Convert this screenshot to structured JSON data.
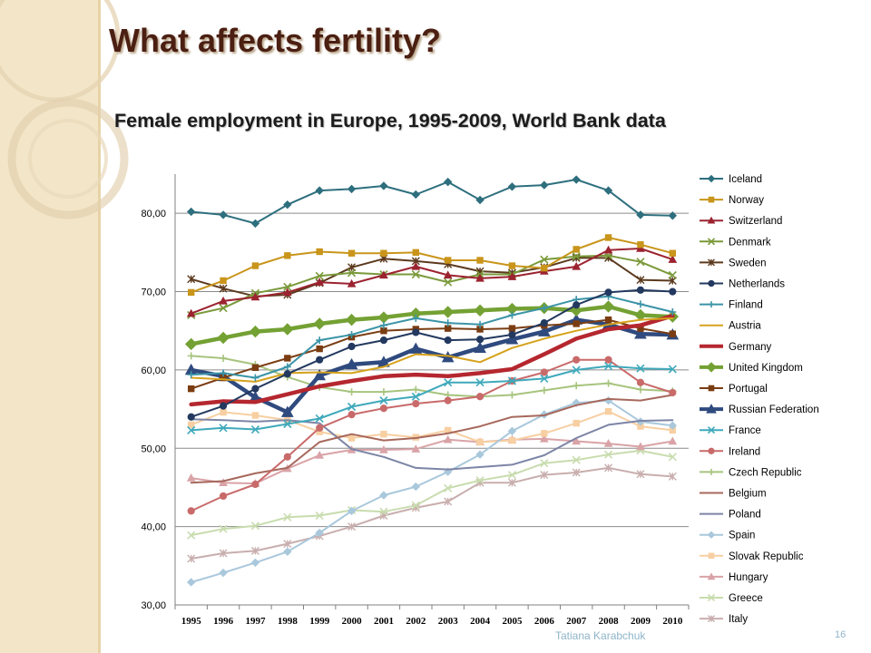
{
  "slide": {
    "title": "What affects fertility?",
    "author": "Tatiana Karabchuk",
    "page_number": "16"
  },
  "chart_data": {
    "type": "line",
    "title": "Female employment in Europe, 1995-2009, World Bank data",
    "xlabel": "",
    "ylabel": "",
    "ylim": [
      30,
      85
    ],
    "yticks": [
      "30,00",
      "40,00",
      "50,00",
      "60,00",
      "70,00",
      "80,00"
    ],
    "grid": true,
    "legend_position": "right",
    "x": [
      "1995",
      "1996",
      "1997",
      "1998",
      "1999",
      "2000",
      "2001",
      "2002",
      "2003",
      "2004",
      "2005",
      "2006",
      "2007",
      "2008",
      "2009",
      "2010"
    ],
    "series": [
      {
        "name": "Iceland",
        "color": "#2e6f7e",
        "marker": "diamond",
        "width": 2,
        "values": [
          80.2,
          79.8,
          78.7,
          81.1,
          82.9,
          83.1,
          83.5,
          82.4,
          84.0,
          81.7,
          83.4,
          83.6,
          84.3,
          82.9,
          79.8,
          79.7
        ]
      },
      {
        "name": "Norway",
        "color": "#c9951b",
        "marker": "square",
        "width": 2,
        "values": [
          69.9,
          71.4,
          73.3,
          74.6,
          75.1,
          74.9,
          74.9,
          75.0,
          74.0,
          74.0,
          73.3,
          73.0,
          75.4,
          76.9,
          76.0,
          74.9
        ]
      },
      {
        "name": "Switzerland",
        "color": "#9c2330",
        "marker": "triangle",
        "width": 2,
        "values": [
          67.2,
          68.8,
          69.3,
          69.9,
          71.2,
          71.0,
          72.1,
          73.2,
          72.1,
          71.7,
          71.9,
          72.6,
          73.2,
          75.3,
          75.5,
          74.1
        ]
      },
      {
        "name": "Denmark",
        "color": "#7a9a3a",
        "marker": "x",
        "width": 2,
        "values": [
          67.0,
          67.9,
          69.8,
          70.6,
          72.0,
          72.4,
          72.2,
          72.2,
          71.2,
          72.2,
          72.2,
          74.1,
          74.5,
          74.6,
          73.8,
          72.1
        ]
      },
      {
        "name": "Sweden",
        "color": "#5c3a1e",
        "marker": "star",
        "width": 2,
        "values": [
          71.6,
          70.4,
          69.4,
          69.6,
          71.1,
          73.1,
          74.2,
          73.9,
          73.5,
          72.6,
          72.4,
          73.1,
          74.3,
          74.3,
          71.5,
          71.4
        ]
      },
      {
        "name": "Netherlands",
        "color": "#23395f",
        "marker": "circle",
        "width": 2,
        "values": [
          54.0,
          55.4,
          57.6,
          59.5,
          61.3,
          63.0,
          63.8,
          64.8,
          63.8,
          63.9,
          64.5,
          66.0,
          68.3,
          69.9,
          70.2,
          70.0
        ]
      },
      {
        "name": "Finland",
        "color": "#3b94a7",
        "marker": "plus",
        "width": 2,
        "values": [
          59.4,
          59.6,
          59.0,
          60.4,
          63.8,
          64.5,
          65.7,
          66.6,
          66.0,
          65.8,
          67.0,
          67.9,
          69.0,
          69.4,
          68.4,
          67.4
        ]
      },
      {
        "name": "Austria",
        "color": "#d6a21c",
        "marker": "none",
        "width": 2,
        "values": [
          59.0,
          58.8,
          58.5,
          59.6,
          59.7,
          59.6,
          60.4,
          62.0,
          61.8,
          61.0,
          62.8,
          64.0,
          65.0,
          65.8,
          66.4,
          66.6
        ]
      },
      {
        "name": "Germany",
        "color": "#b5272f",
        "marker": "none",
        "width": 4.5,
        "values": [
          55.6,
          56.0,
          55.9,
          56.9,
          57.9,
          58.6,
          59.2,
          59.4,
          59.2,
          59.6,
          60.1,
          62.0,
          64.0,
          65.2,
          65.7,
          66.9
        ]
      },
      {
        "name": "United Kingdom",
        "color": "#74a134",
        "marker": "diamond",
        "width": 4.5,
        "values": [
          63.3,
          64.1,
          64.9,
          65.2,
          65.9,
          66.4,
          66.7,
          67.2,
          67.4,
          67.6,
          67.8,
          67.9,
          67.6,
          68.1,
          67.0,
          66.8
        ]
      },
      {
        "name": "Portugal",
        "color": "#7a3d12",
        "marker": "square",
        "width": 2,
        "values": [
          57.6,
          59.0,
          60.3,
          61.5,
          62.7,
          64.2,
          65.0,
          65.2,
          65.3,
          65.2,
          65.3,
          65.7,
          65.9,
          66.4,
          65.3,
          64.6
        ]
      },
      {
        "name": "Russian Federation",
        "color": "#2f4a7e",
        "marker": "triangle",
        "width": 4.5,
        "values": [
          60.0,
          59.2,
          56.5,
          54.6,
          59.3,
          60.7,
          61.0,
          62.7,
          61.6,
          62.8,
          63.9,
          64.9,
          66.4,
          65.8,
          64.6,
          64.5
        ]
      },
      {
        "name": "France",
        "color": "#3fa9bb",
        "marker": "x",
        "width": 2,
        "values": [
          52.3,
          52.6,
          52.4,
          53.1,
          53.8,
          55.3,
          56.1,
          56.6,
          58.4,
          58.4,
          58.6,
          58.9,
          60.0,
          60.5,
          60.2,
          60.1
        ]
      },
      {
        "name": "Ireland",
        "color": "#c96a6a",
        "marker": "circle",
        "width": 2,
        "values": [
          42.0,
          43.9,
          45.4,
          48.9,
          52.6,
          54.3,
          55.1,
          55.7,
          56.1,
          56.6,
          58.6,
          59.7,
          61.3,
          61.3,
          58.4,
          57.1
        ]
      },
      {
        "name": "Czech Republic",
        "color": "#a7c47e",
        "marker": "plus",
        "width": 2,
        "values": [
          61.8,
          61.5,
          60.7,
          59.1,
          57.8,
          57.2,
          57.2,
          57.5,
          56.8,
          56.6,
          56.8,
          57.4,
          58.0,
          58.3,
          57.5,
          57.3
        ]
      },
      {
        "name": "Belgium",
        "color": "#a7685c",
        "marker": "none",
        "width": 2,
        "values": [
          45.6,
          45.8,
          46.8,
          47.5,
          50.8,
          51.8,
          51.0,
          51.3,
          51.9,
          52.8,
          54.0,
          54.2,
          55.5,
          56.3,
          56.1,
          56.8
        ]
      },
      {
        "name": "Poland",
        "color": "#7d85a6",
        "marker": "none",
        "width": 2,
        "values": [
          53.7,
          53.6,
          53.4,
          53.6,
          53.2,
          49.9,
          48.9,
          47.5,
          47.3,
          47.6,
          47.9,
          49.1,
          51.3,
          53.0,
          53.5,
          53.6
        ]
      },
      {
        "name": "Spain",
        "color": "#a9c8dc",
        "marker": "diamond",
        "width": 2,
        "values": [
          32.9,
          34.1,
          35.4,
          36.8,
          39.2,
          42.0,
          44.0,
          45.1,
          47.0,
          49.2,
          52.2,
          54.3,
          55.8,
          56.1,
          53.4,
          52.9
        ]
      },
      {
        "name": "Slovak Republic",
        "color": "#f7cfa2",
        "marker": "square",
        "width": 2,
        "values": [
          53.0,
          54.6,
          54.2,
          53.6,
          52.1,
          51.3,
          51.8,
          51.4,
          52.3,
          50.8,
          51.0,
          51.9,
          53.2,
          54.7,
          52.8,
          52.3
        ]
      },
      {
        "name": "Hungary",
        "color": "#d9a3a7",
        "marker": "triangle",
        "width": 2,
        "values": [
          46.2,
          45.6,
          45.5,
          47.4,
          49.1,
          49.8,
          49.8,
          49.9,
          51.1,
          50.8,
          51.1,
          51.2,
          50.9,
          50.6,
          50.2,
          50.9
        ]
      },
      {
        "name": "Greece",
        "color": "#c8dcae",
        "marker": "x",
        "width": 2,
        "values": [
          38.9,
          39.7,
          40.1,
          41.2,
          41.4,
          42.1,
          41.9,
          42.7,
          44.9,
          45.9,
          46.6,
          48.1,
          48.5,
          49.2,
          49.7,
          48.9
        ]
      },
      {
        "name": "Italy",
        "color": "#c9aeae",
        "marker": "star",
        "width": 2,
        "values": [
          35.9,
          36.6,
          36.9,
          37.8,
          38.8,
          40.0,
          41.4,
          42.4,
          43.2,
          45.6,
          45.6,
          46.6,
          46.9,
          47.5,
          46.7,
          46.4
        ]
      }
    ]
  }
}
